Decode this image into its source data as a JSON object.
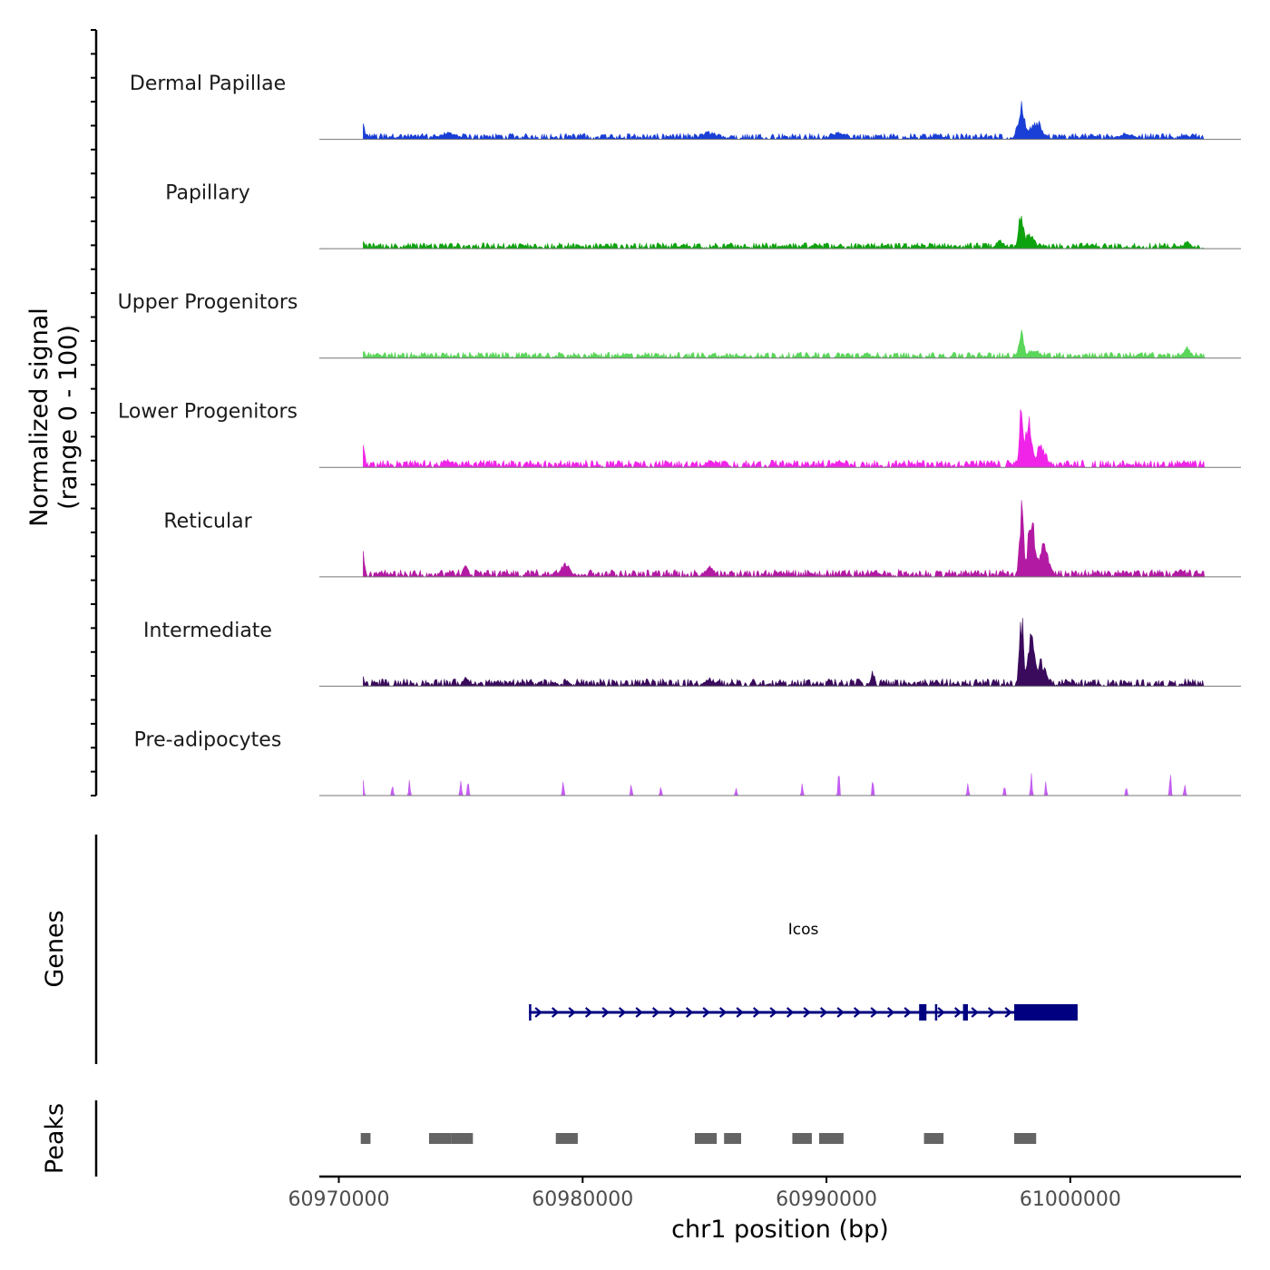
{
  "chart_data": {
    "type": "area",
    "title": "",
    "ylabel_line1": "Normalized signal",
    "ylabel_line2": "(range 0 - 100)",
    "xlabel": "chr1 position (bp)",
    "chromosome": "chr1",
    "xlim": [
      60969200,
      61007000
    ],
    "ylim": [
      0,
      100
    ],
    "x_ticks": [
      60970000,
      60980000,
      60990000,
      61000000
    ],
    "x_tick_labels": [
      "60970000",
      "60980000",
      "60990000",
      "61000000"
    ],
    "signal_start": 60971000,
    "signal_end": 61005500,
    "tracks": [
      {
        "name": "Dermal Papillae",
        "color": "#1a3fd6",
        "baseline": 4,
        "peaks": [
          {
            "pos": 60971000,
            "height": 22,
            "width": 80
          },
          {
            "pos": 60974500,
            "height": 9,
            "width": 500
          },
          {
            "pos": 60985200,
            "height": 10,
            "width": 400
          },
          {
            "pos": 60990500,
            "height": 9,
            "width": 400
          },
          {
            "pos": 60994500,
            "height": 7,
            "width": 200
          },
          {
            "pos": 60998000,
            "height": 48,
            "width": 200
          },
          {
            "pos": 60998600,
            "height": 24,
            "width": 350
          },
          {
            "pos": 61002300,
            "height": 8,
            "width": 400
          },
          {
            "pos": 61004700,
            "height": 7,
            "width": 200
          }
        ]
      },
      {
        "name": "Papillary",
        "color": "#0ea30e",
        "baseline": 4,
        "peaks": [
          {
            "pos": 60971000,
            "height": 12,
            "width": 100
          },
          {
            "pos": 60997100,
            "height": 12,
            "width": 200
          },
          {
            "pos": 60998000,
            "height": 52,
            "width": 150
          },
          {
            "pos": 60998300,
            "height": 20,
            "width": 300
          },
          {
            "pos": 61004800,
            "height": 10,
            "width": 200
          }
        ]
      },
      {
        "name": "Upper Progenitors",
        "color": "#5ad65a",
        "baseline": 4,
        "peaks": [
          {
            "pos": 60971000,
            "height": 10,
            "width": 100
          },
          {
            "pos": 60998000,
            "height": 35,
            "width": 150
          },
          {
            "pos": 60998500,
            "height": 12,
            "width": 350
          },
          {
            "pos": 61004800,
            "height": 15,
            "width": 200
          }
        ]
      },
      {
        "name": "Lower Progenitors",
        "color": "#f024e8",
        "baseline": 5,
        "peaks": [
          {
            "pos": 60971000,
            "height": 45,
            "width": 80
          },
          {
            "pos": 60974500,
            "height": 10,
            "width": 250
          },
          {
            "pos": 60985200,
            "height": 9,
            "width": 250
          },
          {
            "pos": 60990500,
            "height": 9,
            "width": 250
          },
          {
            "pos": 60998000,
            "height": 82,
            "width": 120
          },
          {
            "pos": 60998300,
            "height": 62,
            "width": 200
          },
          {
            "pos": 60998800,
            "height": 28,
            "width": 300
          },
          {
            "pos": 61004700,
            "height": 7,
            "width": 200
          }
        ]
      },
      {
        "name": "Reticular",
        "color": "#b31aa3",
        "baseline": 5,
        "peaks": [
          {
            "pos": 60971000,
            "height": 40,
            "width": 80
          },
          {
            "pos": 60975200,
            "height": 15,
            "width": 150
          },
          {
            "pos": 60979300,
            "height": 22,
            "width": 250
          },
          {
            "pos": 60985200,
            "height": 15,
            "width": 250
          },
          {
            "pos": 60992000,
            "height": 8,
            "width": 250
          },
          {
            "pos": 60998000,
            "height": 100,
            "width": 120
          },
          {
            "pos": 60998400,
            "height": 85,
            "width": 200
          },
          {
            "pos": 60998900,
            "height": 40,
            "width": 300
          },
          {
            "pos": 61004500,
            "height": 9,
            "width": 200
          }
        ]
      },
      {
        "name": "Intermediate",
        "color": "#3a0a5c",
        "baseline": 5,
        "peaks": [
          {
            "pos": 60971000,
            "height": 12,
            "width": 80
          },
          {
            "pos": 60975200,
            "height": 12,
            "width": 150
          },
          {
            "pos": 60985200,
            "height": 10,
            "width": 250
          },
          {
            "pos": 60991900,
            "height": 20,
            "width": 100
          },
          {
            "pos": 60994500,
            "height": 10,
            "width": 100
          },
          {
            "pos": 60998000,
            "height": 95,
            "width": 120
          },
          {
            "pos": 60998400,
            "height": 70,
            "width": 200
          },
          {
            "pos": 60998800,
            "height": 35,
            "width": 300
          }
        ]
      },
      {
        "name": "Pre-adipocytes",
        "color": "#c35cf2",
        "baseline": 0,
        "peaks": [
          {
            "pos": 60971000,
            "height": 25,
            "width": 40
          },
          {
            "pos": 60972200,
            "height": 20,
            "width": 40
          },
          {
            "pos": 60972900,
            "height": 22,
            "width": 40
          },
          {
            "pos": 60975000,
            "height": 25,
            "width": 40
          },
          {
            "pos": 60975300,
            "height": 25,
            "width": 40
          },
          {
            "pos": 60979200,
            "height": 25,
            "width": 40
          },
          {
            "pos": 60982000,
            "height": 18,
            "width": 40
          },
          {
            "pos": 60983200,
            "height": 15,
            "width": 40
          },
          {
            "pos": 60986300,
            "height": 12,
            "width": 40
          },
          {
            "pos": 60989000,
            "height": 18,
            "width": 40
          },
          {
            "pos": 60990500,
            "height": 40,
            "width": 40
          },
          {
            "pos": 60991900,
            "height": 22,
            "width": 40
          },
          {
            "pos": 60995800,
            "height": 15,
            "width": 40
          },
          {
            "pos": 60997300,
            "height": 15,
            "width": 40
          },
          {
            "pos": 60998400,
            "height": 32,
            "width": 40
          },
          {
            "pos": 60999000,
            "height": 20,
            "width": 40
          },
          {
            "pos": 61002300,
            "height": 18,
            "width": 40
          },
          {
            "pos": 61004100,
            "height": 35,
            "width": 40
          },
          {
            "pos": 61004700,
            "height": 20,
            "width": 40
          }
        ]
      }
    ],
    "genes_axis_label": "Genes",
    "genes": [
      {
        "name": "Icos",
        "color": "#000080",
        "start": 60977800,
        "end": 61000300,
        "strand": "+",
        "exons": [
          [
            60977800,
            60977880
          ],
          [
            60993800,
            60994100
          ],
          [
            60994450,
            60994520
          ],
          [
            60995600,
            60995800
          ],
          [
            60997700,
            61000300
          ]
        ]
      }
    ],
    "peaks_axis_label": "Peaks",
    "peaks_color": "#646464",
    "peak_regions": [
      [
        60970900,
        60971300
      ],
      [
        60973700,
        60974600
      ],
      [
        60974600,
        60975500
      ],
      [
        60978900,
        60979800
      ],
      [
        60984600,
        60985500
      ],
      [
        60985800,
        60986500
      ],
      [
        60988600,
        60989400
      ],
      [
        60989700,
        60990700
      ],
      [
        60994000,
        60994800
      ],
      [
        60997700,
        60998600
      ]
    ]
  }
}
